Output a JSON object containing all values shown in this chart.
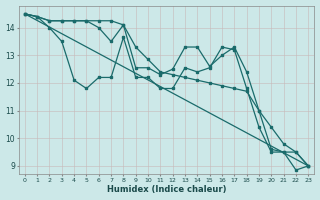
{
  "xlabel": "Humidex (Indice chaleur)",
  "bg_color": "#cce8e8",
  "grid_color": "#b0d0d0",
  "line_color": "#1a6b6b",
  "xlim": [
    -0.5,
    23.5
  ],
  "ylim": [
    8.7,
    14.8
  ],
  "xticks": [
    0,
    1,
    2,
    3,
    4,
    5,
    6,
    7,
    8,
    9,
    10,
    11,
    12,
    13,
    14,
    15,
    16,
    17,
    18,
    19,
    20,
    21,
    22,
    23
  ],
  "yticks": [
    9,
    10,
    11,
    12,
    13,
    14
  ],
  "line1_x": [
    0,
    1,
    2,
    3,
    4,
    5,
    6,
    7,
    8,
    9,
    10,
    11,
    12,
    13,
    14,
    15,
    16,
    17,
    18,
    19,
    20,
    21,
    22,
    23
  ],
  "line1_y": [
    14.5,
    14.4,
    14.0,
    13.5,
    12.1,
    11.8,
    12.2,
    12.2,
    13.65,
    12.2,
    12.2,
    11.8,
    11.8,
    12.55,
    12.4,
    12.55,
    13.3,
    13.2,
    11.8,
    10.4,
    9.5,
    9.5,
    8.85,
    9.0
  ],
  "line2_x": [
    0,
    1,
    2,
    3,
    4,
    5,
    6,
    7,
    8,
    9,
    10,
    11,
    12,
    13,
    14,
    15,
    16,
    17,
    18,
    19,
    20,
    21,
    22,
    23
  ],
  "line2_y": [
    14.5,
    14.4,
    14.25,
    14.25,
    14.25,
    14.25,
    14.25,
    14.25,
    14.1,
    13.3,
    12.85,
    12.4,
    12.3,
    12.2,
    12.1,
    12.0,
    11.9,
    11.8,
    11.7,
    11.0,
    9.6,
    9.5,
    9.5,
    9.0
  ],
  "line3_x": [
    0,
    23
  ],
  "line3_y": [
    14.5,
    9.0
  ],
  "line4_x": [
    0,
    1,
    2,
    3,
    4,
    5,
    6,
    7,
    8,
    9,
    10,
    11,
    12,
    13,
    14,
    15,
    16,
    17,
    18,
    19,
    20,
    21,
    22,
    23
  ],
  "line4_y": [
    14.5,
    14.4,
    14.25,
    14.25,
    14.25,
    14.25,
    14.0,
    13.5,
    14.1,
    12.55,
    12.55,
    12.3,
    12.5,
    13.3,
    13.3,
    12.6,
    13.0,
    13.3,
    12.4,
    11.0,
    10.4,
    9.8,
    9.5,
    9.0
  ]
}
